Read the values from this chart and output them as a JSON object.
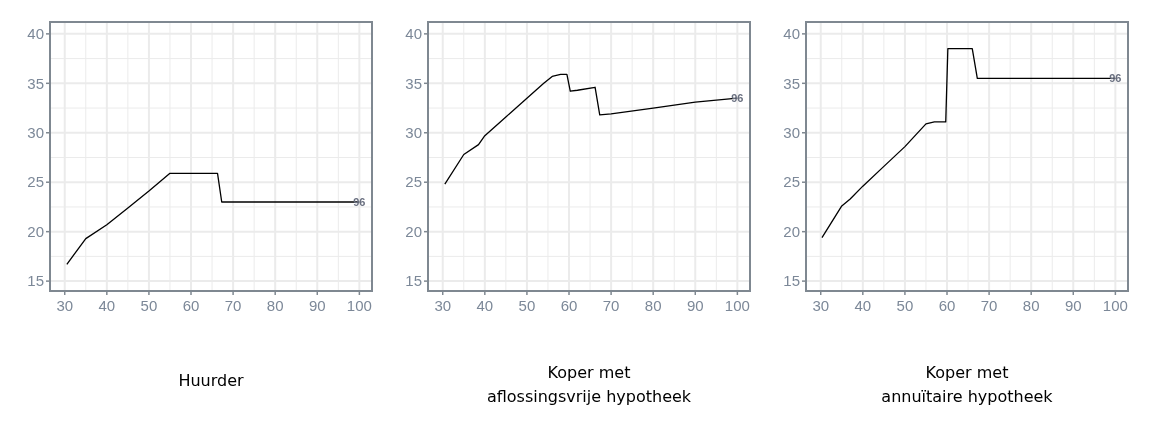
{
  "chart_data": [
    {
      "type": "line",
      "xlabel": "Huurder",
      "xlim": [
        26.5,
        103
      ],
      "ylim": [
        14,
        41.2
      ],
      "xticks": [
        30,
        40,
        50,
        60,
        70,
        80,
        90,
        100
      ],
      "yticks": [
        15,
        20,
        25,
        30,
        35,
        40
      ],
      "grid": true,
      "annotations": [
        "96"
      ],
      "series": [
        {
          "color": "#000000",
          "x": [
            30.5,
            35,
            40,
            45,
            50,
            55,
            66.3,
            67.3,
            100
          ],
          "values": [
            16.7,
            19.3,
            20.7,
            22.4,
            24.1,
            25.9,
            25.9,
            23,
            23
          ]
        }
      ]
    },
    {
      "type": "line",
      "xlabel": "Koper met\naflossingsvrije hypotheek",
      "xlim": [
        26.5,
        103
      ],
      "ylim": [
        14,
        41.2
      ],
      "xticks": [
        30,
        40,
        50,
        60,
        70,
        80,
        90,
        100
      ],
      "yticks": [
        15,
        20,
        25,
        30,
        35,
        40
      ],
      "grid": true,
      "annotations": [
        "96"
      ],
      "series": [
        {
          "color": "#000000",
          "x": [
            30.5,
            35,
            38.5,
            40,
            45,
            50,
            54,
            56,
            58,
            59.5,
            60.3,
            62,
            66.2,
            67.3,
            70,
            80,
            90,
            100
          ],
          "values": [
            24.8,
            27.8,
            28.8,
            29.7,
            31.6,
            33.5,
            35,
            35.7,
            35.9,
            35.9,
            34.2,
            34.3,
            34.6,
            31.8,
            31.9,
            32.5,
            33.1,
            33.5
          ]
        }
      ]
    },
    {
      "type": "line",
      "xlabel": "Koper met\nannuïtaire hypotheek",
      "xlim": [
        26.5,
        103
      ],
      "ylim": [
        14,
        41.2
      ],
      "xticks": [
        30,
        40,
        50,
        60,
        70,
        80,
        90,
        100
      ],
      "yticks": [
        15,
        20,
        25,
        30,
        35,
        40
      ],
      "grid": true,
      "annotations": [
        "96"
      ],
      "series": [
        {
          "color": "#000000",
          "x": [
            30.3,
            35,
            37,
            40,
            45,
            50,
            55,
            57,
            59.7,
            60.2,
            66,
            67.2,
            100
          ],
          "values": [
            19.4,
            22.6,
            23.3,
            24.6,
            26.6,
            28.6,
            30.9,
            31.1,
            31.1,
            38.5,
            38.5,
            35.5,
            35.5
          ]
        }
      ]
    }
  ]
}
